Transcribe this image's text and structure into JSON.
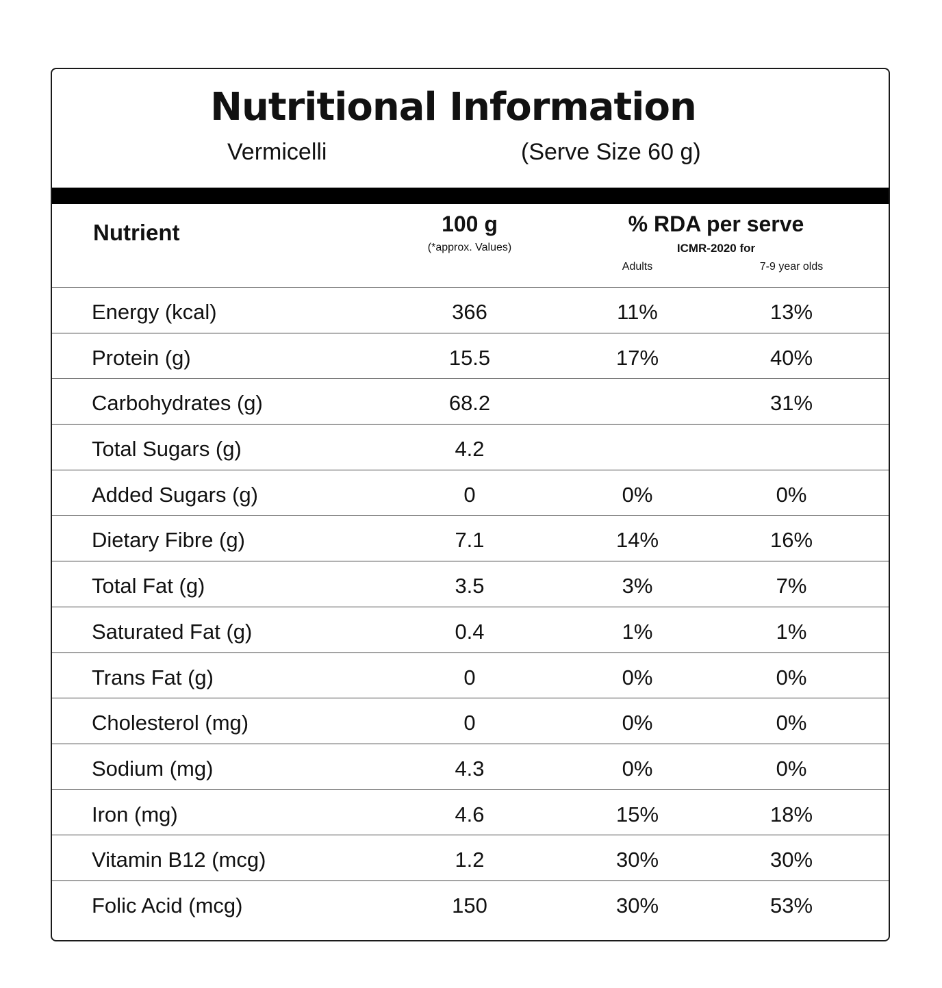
{
  "header": {
    "title": "Nutritional Information",
    "product": "Vermicelli",
    "serve_size": "(Serve Size 60 g)"
  },
  "columns": {
    "nutrient": "Nutrient",
    "per_100g": "100 g",
    "approx": "(*approx. Values)",
    "rda": "% RDA per serve",
    "icmr": "ICMR-2020 for",
    "adults": "Adults",
    "kids": "7-9 year olds"
  },
  "rows": [
    {
      "name": "Energy (kcal)",
      "value": "366",
      "adults": "11%",
      "kids": "13%"
    },
    {
      "name": "Protein (g)",
      "value": "15.5",
      "adults": "17%",
      "kids": "40%"
    },
    {
      "name": "Carbohydrates (g)",
      "value": "68.2",
      "adults": "",
      "kids": "31%"
    },
    {
      "name": "Total Sugars (g)",
      "value": "4.2",
      "adults": "",
      "kids": ""
    },
    {
      "name": "Added Sugars (g)",
      "value": "0",
      "adults": "0%",
      "kids": "0%"
    },
    {
      "name": "Dietary Fibre (g)",
      "value": "7.1",
      "adults": "14%",
      "kids": "16%"
    },
    {
      "name": "Total Fat (g)",
      "value": "3.5",
      "adults": "3%",
      "kids": "7%"
    },
    {
      "name": "Saturated Fat (g)",
      "value": "0.4",
      "adults": "1%",
      "kids": "1%"
    },
    {
      "name": "Trans Fat (g)",
      "value": "0",
      "adults": "0%",
      "kids": "0%"
    },
    {
      "name": "Cholesterol (mg)",
      "value": "0",
      "adults": "0%",
      "kids": "0%"
    },
    {
      "name": "Sodium (mg)",
      "value": "4.3",
      "adults": "0%",
      "kids": "0%"
    },
    {
      "name": "Iron (mg)",
      "value": "4.6",
      "adults": "15%",
      "kids": "18%"
    },
    {
      "name": "Vitamin B12 (mcg)",
      "value": "1.2",
      "adults": "30%",
      "kids": "30%"
    },
    {
      "name": "Folic Acid (mcg)",
      "value": "150",
      "adults": "30%",
      "kids": "53%"
    }
  ]
}
